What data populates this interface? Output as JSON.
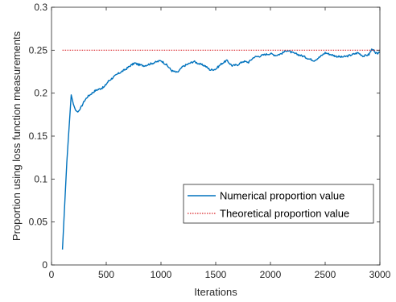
{
  "chart_data": {
    "type": "line",
    "title": "",
    "xlabel": "Iterations",
    "ylabel": "Proportion using loss function measurements",
    "xlim": [
      0,
      3000
    ],
    "ylim": [
      0,
      0.3
    ],
    "xticks": [
      0,
      500,
      1000,
      1500,
      2000,
      2500,
      3000
    ],
    "xtick_labels": [
      "0",
      "500",
      "1000",
      "1500",
      "2000",
      "2500",
      "3000"
    ],
    "yticks": [
      0,
      0.05,
      0.1,
      0.15,
      0.2,
      0.25,
      0.3
    ],
    "ytick_labels": [
      "0",
      "0.05",
      "0.1",
      "0.15",
      "0.2",
      "0.25",
      "0.3"
    ],
    "grid": false,
    "legend_position": "lower-right",
    "series": [
      {
        "name": "Numerical proportion value",
        "style": "solid",
        "color": "#0072BD",
        "x": [
          100,
          140,
          180,
          200,
          220,
          240,
          260,
          280,
          300,
          330,
          360,
          400,
          440,
          480,
          520,
          560,
          600,
          640,
          680,
          720,
          760,
          800,
          850,
          900,
          950,
          1000,
          1050,
          1100,
          1150,
          1200,
          1250,
          1300,
          1350,
          1400,
          1450,
          1500,
          1550,
          1600,
          1650,
          1700,
          1750,
          1800,
          1850,
          1900,
          1950,
          2000,
          2050,
          2100,
          2150,
          2200,
          2250,
          2300,
          2350,
          2400,
          2450,
          2500,
          2550,
          2600,
          2650,
          2700,
          2750,
          2800,
          2850,
          2900,
          2930,
          2960,
          3000
        ],
        "values": [
          0.018,
          0.12,
          0.198,
          0.187,
          0.18,
          0.178,
          0.181,
          0.186,
          0.191,
          0.196,
          0.199,
          0.203,
          0.205,
          0.207,
          0.214,
          0.218,
          0.222,
          0.225,
          0.228,
          0.232,
          0.235,
          0.233,
          0.232,
          0.234,
          0.236,
          0.238,
          0.233,
          0.226,
          0.224,
          0.231,
          0.234,
          0.237,
          0.234,
          0.232,
          0.227,
          0.228,
          0.234,
          0.238,
          0.232,
          0.233,
          0.237,
          0.236,
          0.242,
          0.243,
          0.245,
          0.246,
          0.244,
          0.246,
          0.25,
          0.247,
          0.245,
          0.243,
          0.24,
          0.238,
          0.242,
          0.247,
          0.245,
          0.243,
          0.242,
          0.243,
          0.245,
          0.247,
          0.243,
          0.245,
          0.252,
          0.246,
          0.247
        ]
      },
      {
        "name": "Theoretical proportion value",
        "style": "dotted",
        "color": "#D9262B",
        "x": [
          100,
          3000
        ],
        "values": [
          0.25,
          0.25
        ]
      }
    ]
  }
}
